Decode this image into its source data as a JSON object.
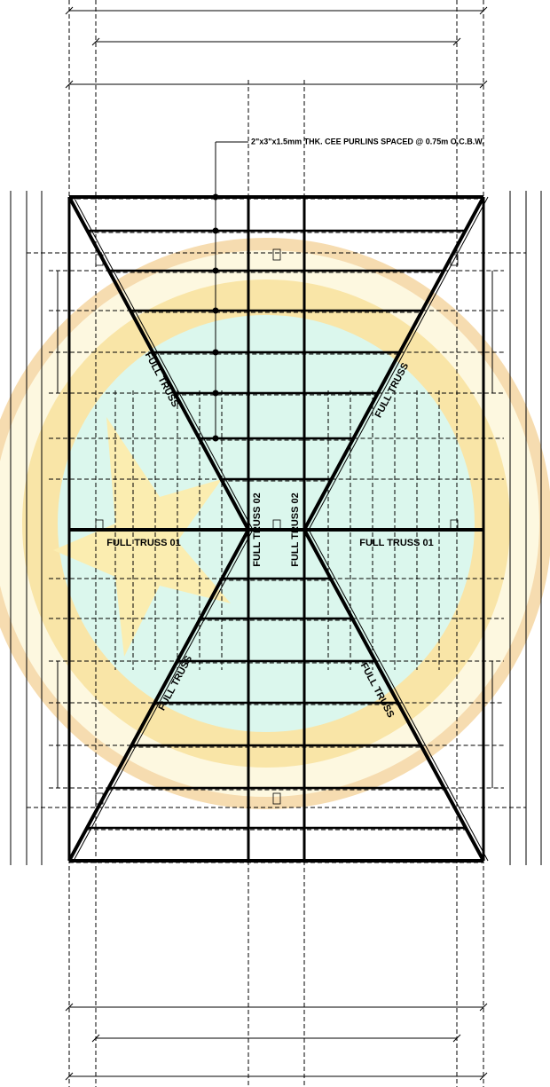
{
  "callout": "2\"x3\"x1.5mm THK. CEE PURLINS SPACED @ 0.75m O.C.B.W.",
  "diagonal_labels": [
    "FULL TRUSS",
    "FULL TRUSS",
    "FULL TRUSS",
    "FULL TRUSS"
  ],
  "truss01_labels": [
    "FULL TRUSS 01",
    "FULL TRUSS 01"
  ],
  "truss02_labels": [
    "FULL TRUSS 02",
    "FULL TRUSS 02"
  ]
}
